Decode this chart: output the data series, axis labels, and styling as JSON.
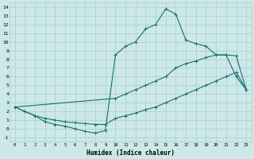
{
  "xlabel": "Humidex (Indice chaleur)",
  "bg_color": "#cce8e8",
  "grid_color": "#aacccc",
  "line_color": "#1a6e6e",
  "xlim": [
    -0.5,
    23.5
  ],
  "ylim": [
    -1.5,
    14.5
  ],
  "xticks": [
    0,
    1,
    2,
    3,
    4,
    5,
    6,
    7,
    8,
    9,
    10,
    11,
    12,
    13,
    14,
    15,
    16,
    17,
    18,
    19,
    20,
    21,
    22,
    23
  ],
  "yticks": [
    -1,
    0,
    1,
    2,
    3,
    4,
    5,
    6,
    7,
    8,
    9,
    10,
    11,
    12,
    13,
    14
  ],
  "curve1_x": [
    0,
    1,
    2,
    3,
    4,
    5,
    6,
    7,
    8,
    9,
    10,
    11,
    12,
    13,
    14,
    15,
    16,
    17,
    18,
    19,
    20,
    21,
    22,
    23
  ],
  "curve1_y": [
    2.5,
    2.0,
    1.5,
    0.8,
    0.5,
    0.3,
    0.0,
    -0.3,
    -0.5,
    -0.2,
    8.5,
    9.5,
    10.0,
    11.5,
    12.0,
    13.8,
    13.2,
    10.2,
    9.8,
    9.5,
    8.5,
    8.5,
    6.0,
    4.5
  ],
  "curve2_x": [
    0,
    10,
    11,
    12,
    13,
    14,
    15,
    16,
    17,
    18,
    19,
    20,
    21,
    22,
    23
  ],
  "curve2_y": [
    2.5,
    3.5,
    4.0,
    4.5,
    5.0,
    5.5,
    6.0,
    7.0,
    7.5,
    7.8,
    8.2,
    8.5,
    8.5,
    8.4,
    4.5
  ],
  "curve3_x": [
    0,
    1,
    2,
    3,
    4,
    5,
    6,
    7,
    8,
    9,
    10,
    11,
    12,
    13,
    14,
    15,
    16,
    17,
    18,
    19,
    20,
    21,
    22,
    23
  ],
  "curve3_y": [
    2.5,
    2.0,
    1.5,
    1.2,
    1.0,
    0.8,
    0.7,
    0.6,
    0.5,
    0.5,
    1.2,
    1.5,
    1.8,
    2.2,
    2.5,
    3.0,
    3.5,
    4.0,
    4.5,
    5.0,
    5.5,
    6.0,
    6.5,
    4.5
  ]
}
